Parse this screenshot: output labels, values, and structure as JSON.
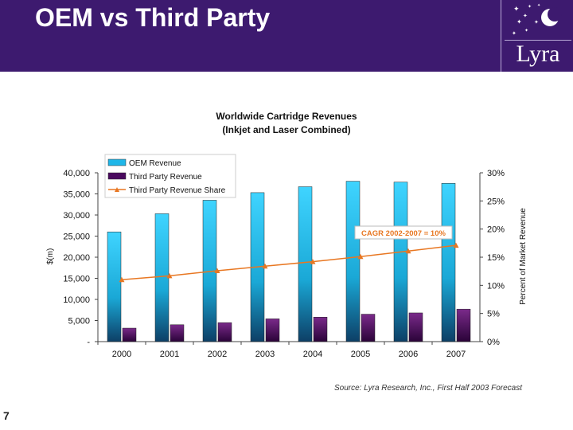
{
  "slide": {
    "title": "OEM vs Third Party",
    "logo_text": "Lyra",
    "page_number": "7",
    "source": "Source: Lyra Research, Inc., First Half 2003 Forecast",
    "header_color": "#3d1a6f"
  },
  "chart_data": {
    "type": "bar",
    "title": "Worldwide Cartridge Revenues",
    "subtitle": "(Inkjet and Laser Combined)",
    "categories": [
      "2000",
      "2001",
      "2002",
      "2003",
      "2004",
      "2005",
      "2006",
      "2007"
    ],
    "series": [
      {
        "name": "OEM Revenue",
        "type": "bar",
        "axis": "left",
        "color": "#1fb6e8",
        "values": [
          26000,
          30300,
          33500,
          35300,
          36700,
          38000,
          37800,
          37500
        ]
      },
      {
        "name": "Third Party Revenue",
        "type": "bar",
        "axis": "left",
        "color": "#4a0a5e",
        "values": [
          3200,
          4000,
          4500,
          5400,
          5800,
          6500,
          6800,
          7700
        ]
      },
      {
        "name": "Third Party Revenue Share",
        "type": "line",
        "axis": "right",
        "color": "#e87722",
        "values": [
          11.0,
          11.7,
          12.6,
          13.4,
          14.2,
          15.1,
          16.1,
          17.1
        ]
      }
    ],
    "ylabel": "$(m)",
    "y2label": "Percent of Market Revenue",
    "ylim": [
      0,
      40000
    ],
    "y2lim": [
      0,
      30
    ],
    "y_ticks": [
      "-",
      "5,000",
      "10,000",
      "15,000",
      "20,000",
      "25,000",
      "30,000",
      "35,000",
      "40,000"
    ],
    "y2_ticks": [
      "0%",
      "5%",
      "10%",
      "15%",
      "20%",
      "25%",
      "30%"
    ],
    "annotation": "CAGR 2002-2007 = 10%",
    "legend_position": "top-left"
  }
}
